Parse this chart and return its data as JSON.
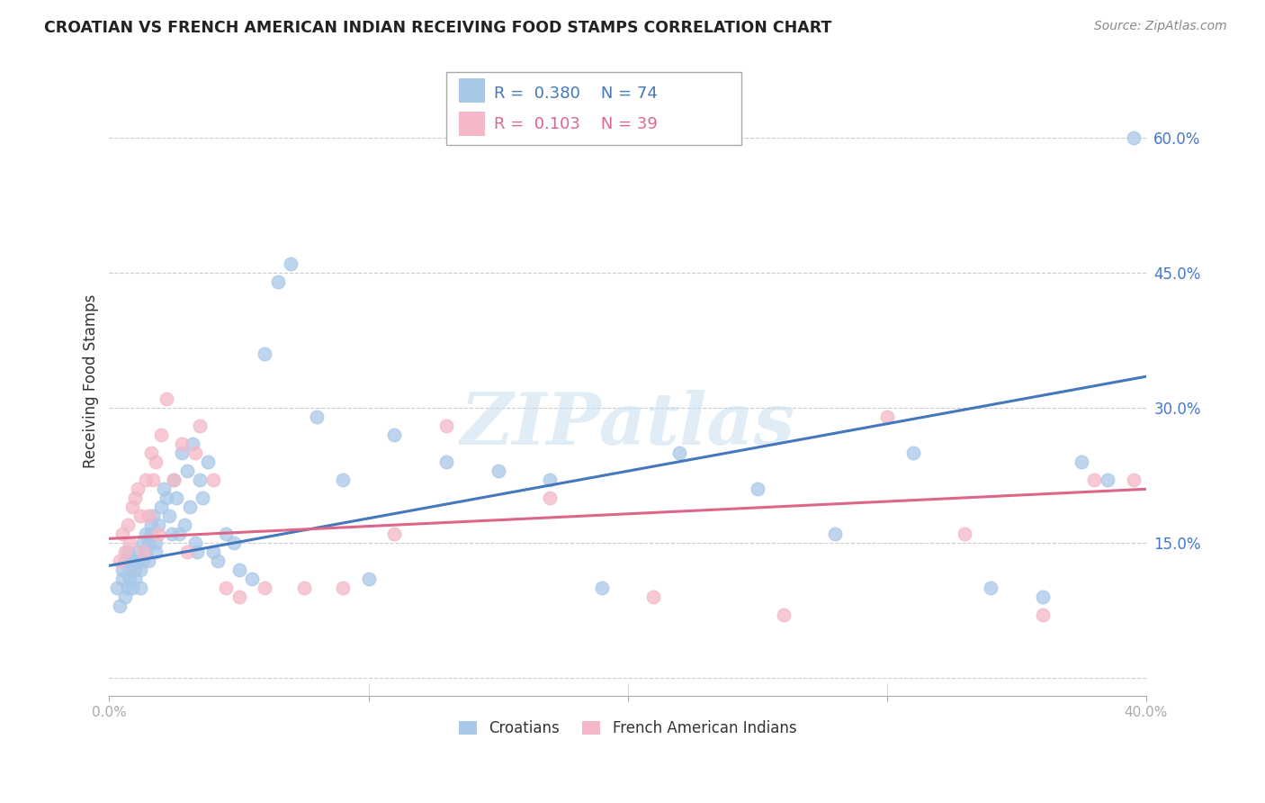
{
  "title": "CROATIAN VS FRENCH AMERICAN INDIAN RECEIVING FOOD STAMPS CORRELATION CHART",
  "source": "Source: ZipAtlas.com",
  "ylabel": "Receiving Food Stamps",
  "watermark": "ZIPatlas",
  "xlim": [
    0.0,
    0.4
  ],
  "ylim": [
    -0.02,
    0.68
  ],
  "yticks": [
    0.0,
    0.15,
    0.3,
    0.45,
    0.6
  ],
  "ytick_labels": [
    "",
    "15.0%",
    "30.0%",
    "45.0%",
    "60.0%"
  ],
  "croatian_R": 0.38,
  "croatian_N": 74,
  "french_R": 0.103,
  "french_N": 39,
  "croatian_color": "#a8c8e8",
  "french_color": "#f4b8c8",
  "croatian_line_color": "#4477bb",
  "french_line_color": "#dd6688",
  "legend_R_color_croatian": "#4477bb",
  "legend_R_color_french": "#dd6688",
  "croatian_line_y0": 0.125,
  "croatian_line_y1": 0.335,
  "french_line_y0": 0.155,
  "french_line_y1": 0.21,
  "croatian_x": [
    0.003,
    0.004,
    0.005,
    0.005,
    0.006,
    0.006,
    0.007,
    0.007,
    0.008,
    0.008,
    0.009,
    0.009,
    0.01,
    0.01,
    0.011,
    0.011,
    0.012,
    0.012,
    0.013,
    0.013,
    0.014,
    0.014,
    0.015,
    0.015,
    0.016,
    0.016,
    0.017,
    0.018,
    0.018,
    0.019,
    0.02,
    0.021,
    0.022,
    0.023,
    0.024,
    0.025,
    0.026,
    0.027,
    0.028,
    0.029,
    0.03,
    0.031,
    0.032,
    0.033,
    0.034,
    0.035,
    0.036,
    0.038,
    0.04,
    0.042,
    0.045,
    0.048,
    0.05,
    0.055,
    0.06,
    0.065,
    0.07,
    0.08,
    0.09,
    0.1,
    0.11,
    0.13,
    0.15,
    0.17,
    0.19,
    0.22,
    0.25,
    0.28,
    0.31,
    0.34,
    0.36,
    0.375,
    0.385,
    0.395
  ],
  "croatian_y": [
    0.1,
    0.08,
    0.11,
    0.12,
    0.09,
    0.13,
    0.1,
    0.14,
    0.11,
    0.12,
    0.1,
    0.13,
    0.12,
    0.11,
    0.14,
    0.13,
    0.12,
    0.1,
    0.15,
    0.13,
    0.14,
    0.16,
    0.15,
    0.13,
    0.17,
    0.16,
    0.18,
    0.15,
    0.14,
    0.17,
    0.19,
    0.21,
    0.2,
    0.18,
    0.16,
    0.22,
    0.2,
    0.16,
    0.25,
    0.17,
    0.23,
    0.19,
    0.26,
    0.15,
    0.14,
    0.22,
    0.2,
    0.24,
    0.14,
    0.13,
    0.16,
    0.15,
    0.12,
    0.11,
    0.36,
    0.44,
    0.46,
    0.29,
    0.22,
    0.11,
    0.27,
    0.24,
    0.23,
    0.22,
    0.1,
    0.25,
    0.21,
    0.16,
    0.25,
    0.1,
    0.09,
    0.24,
    0.22,
    0.6
  ],
  "french_x": [
    0.004,
    0.005,
    0.006,
    0.007,
    0.008,
    0.009,
    0.01,
    0.011,
    0.012,
    0.013,
    0.014,
    0.015,
    0.016,
    0.017,
    0.018,
    0.019,
    0.02,
    0.022,
    0.025,
    0.028,
    0.03,
    0.033,
    0.035,
    0.04,
    0.045,
    0.05,
    0.06,
    0.075,
    0.09,
    0.11,
    0.13,
    0.17,
    0.21,
    0.26,
    0.3,
    0.33,
    0.36,
    0.38,
    0.395
  ],
  "french_y": [
    0.13,
    0.16,
    0.14,
    0.17,
    0.15,
    0.19,
    0.2,
    0.21,
    0.18,
    0.14,
    0.22,
    0.18,
    0.25,
    0.22,
    0.24,
    0.16,
    0.27,
    0.31,
    0.22,
    0.26,
    0.14,
    0.25,
    0.28,
    0.22,
    0.1,
    0.09,
    0.1,
    0.1,
    0.1,
    0.16,
    0.28,
    0.2,
    0.09,
    0.07,
    0.29,
    0.16,
    0.07,
    0.22,
    0.22
  ]
}
